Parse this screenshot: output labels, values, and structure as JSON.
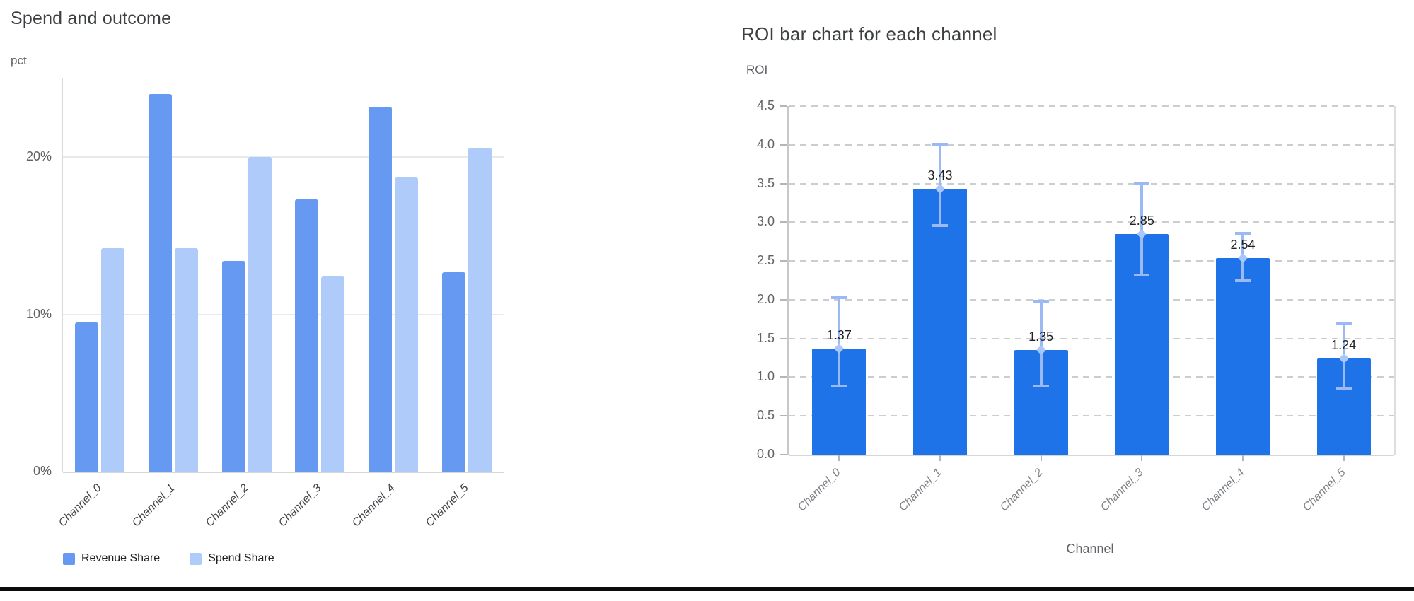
{
  "page": {
    "background": "#ffffff",
    "bottom_bar_color": "#0b0b0b"
  },
  "chart_data": [
    {
      "type": "bar",
      "title": "Spend and outcome",
      "ylabel": "pct",
      "xlabel": "",
      "categories": [
        "Channel_0",
        "Channel_1",
        "Channel_2",
        "Channel_3",
        "Channel_4",
        "Channel_5"
      ],
      "series": [
        {
          "name": "Revenue Share",
          "color": "#6699f2",
          "values": [
            9.5,
            24.0,
            13.4,
            17.3,
            23.2,
            12.7
          ]
        },
        {
          "name": "Spend Share",
          "color": "#aecbfa",
          "values": [
            14.2,
            14.2,
            20.0,
            12.4,
            18.7,
            20.6
          ]
        }
      ],
      "ylim": [
        0,
        25
      ],
      "y_ticks": [
        {
          "value": 0,
          "label": "0%"
        },
        {
          "value": 10,
          "label": "10%"
        },
        {
          "value": 20,
          "label": "20%"
        }
      ],
      "grid_values": [
        10,
        20
      ],
      "grid_style": "solid",
      "legend_position": "bottom",
      "legend_labels": [
        "Revenue Share",
        "Spend Share"
      ]
    },
    {
      "type": "bar",
      "title": "ROI bar chart for each channel",
      "ylabel": "ROI",
      "xlabel": "Channel",
      "categories": [
        "Channel_0",
        "Channel_1",
        "Channel_2",
        "Channel_3",
        "Channel_4",
        "Channel_5"
      ],
      "values": [
        1.37,
        3.43,
        1.35,
        2.85,
        2.54,
        1.24
      ],
      "value_labels": [
        "1.37",
        "3.43",
        "1.35",
        "2.85",
        "2.54",
        "1.24"
      ],
      "error_high": [
        2.04,
        4.02,
        1.99,
        3.51,
        2.87,
        1.7
      ],
      "error_low": [
        0.88,
        2.95,
        0.88,
        2.31,
        2.24,
        0.85
      ],
      "bar_color": "#1e73e8",
      "error_color": "#9ab9f5",
      "error_marker_color": "#a9c7fa",
      "ylim": [
        0,
        4.5
      ],
      "y_ticks": [
        {
          "value": 0.0,
          "label": "0.0"
        },
        {
          "value": 0.5,
          "label": "0.5"
        },
        {
          "value": 1.0,
          "label": "1.0"
        },
        {
          "value": 1.5,
          "label": "1.5"
        },
        {
          "value": 2.0,
          "label": "2.0"
        },
        {
          "value": 2.5,
          "label": "2.5"
        },
        {
          "value": 3.0,
          "label": "3.0"
        },
        {
          "value": 3.5,
          "label": "3.5"
        },
        {
          "value": 4.0,
          "label": "4.0"
        },
        {
          "value": 4.5,
          "label": "4.5"
        }
      ],
      "grid_style": "dashed",
      "legend_position": "none"
    }
  ]
}
